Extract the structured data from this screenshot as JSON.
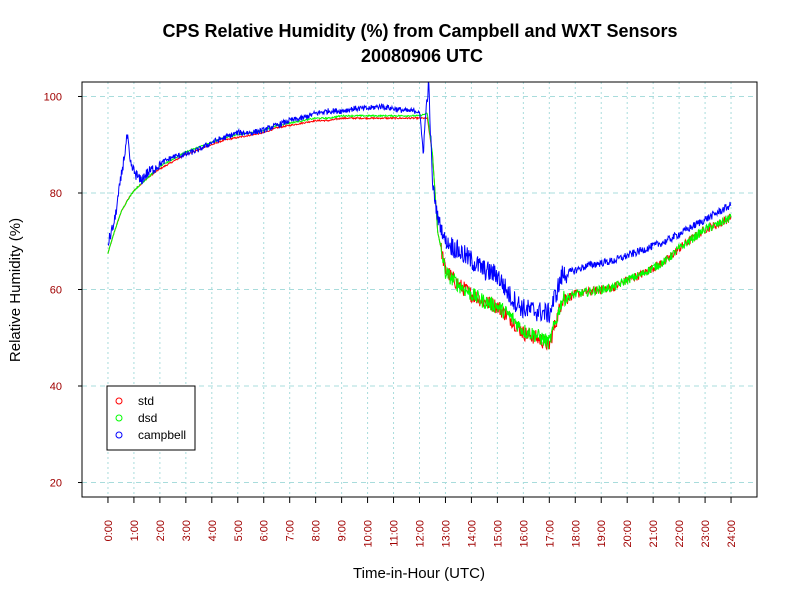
{
  "chart_data": {
    "type": "line",
    "title": "CPS Relative Humidity (%) from Campbell and WXT Sensors",
    "subtitle": "20080906  UTC",
    "xlabel": "Time-in-Hour (UTC)",
    "ylabel": "Relative Humidity (%)",
    "xlim": [
      -1,
      25
    ],
    "ylim": [
      17,
      103
    ],
    "x_ticks": [
      0,
      1,
      2,
      3,
      4,
      5,
      6,
      7,
      8,
      9,
      10,
      11,
      12,
      13,
      14,
      15,
      16,
      17,
      18,
      19,
      20,
      21,
      22,
      23,
      24
    ],
    "x_tick_labels": [
      "0:00",
      "1:00",
      "2:00",
      "3:00",
      "4:00",
      "5:00",
      "6:00",
      "7:00",
      "8:00",
      "9:00",
      "10:00",
      "11:00",
      "12:00",
      "13:00",
      "14:00",
      "15:00",
      "16:00",
      "17:00",
      "18:00",
      "19:00",
      "20:00",
      "21:00",
      "22:00",
      "23:00",
      "24:00"
    ],
    "y_ticks": [
      20,
      40,
      60,
      80,
      100
    ],
    "y_tick_labels": [
      "20",
      "40",
      "60",
      "80",
      "100"
    ],
    "grid": true,
    "legend_position": "bottom-left",
    "colors": {
      "std": "#ff0000",
      "dsd": "#00ff00",
      "campbell": "#0000ff",
      "tick_label": "#a00000",
      "grid": "#a8dcdc"
    },
    "series": [
      {
        "name": "std",
        "color": "#ff0000",
        "x": [
          0,
          0.25,
          0.5,
          0.75,
          1,
          1.5,
          2,
          2.5,
          3,
          3.5,
          4,
          4.5,
          5,
          5.5,
          6,
          6.5,
          7,
          7.5,
          8,
          8.5,
          9,
          9.5,
          10,
          10.5,
          11,
          11.5,
          12,
          12.3,
          12.5,
          12.7,
          13,
          13.5,
          14,
          14.5,
          15,
          15.5,
          16,
          16.5,
          17,
          17.5,
          18,
          18.5,
          19,
          19.5,
          20,
          20.5,
          21,
          21.5,
          22,
          22.5,
          23,
          23.5,
          24
        ],
        "values": [
          67.5,
          72,
          76,
          78.5,
          80.5,
          83,
          85,
          86.5,
          88,
          89,
          90,
          91,
          91.5,
          92,
          92.5,
          93.5,
          94,
          94.5,
          95,
          95,
          95.5,
          95.5,
          95.5,
          95.5,
          95.5,
          95.5,
          95.5,
          95.5,
          88,
          72,
          64,
          61,
          59,
          57.5,
          56.5,
          54,
          51,
          50,
          48.5,
          58,
          59,
          59.5,
          60,
          60.5,
          62,
          63,
          64.5,
          66,
          68.5,
          70.5,
          72.5,
          73.5,
          75
        ]
      },
      {
        "name": "dsd",
        "color": "#00ff00",
        "x": [
          0,
          0.25,
          0.5,
          0.75,
          1,
          1.5,
          2,
          2.5,
          3,
          3.5,
          4,
          4.5,
          5,
          5.5,
          6,
          6.5,
          7,
          7.5,
          8,
          8.5,
          9,
          9.5,
          10,
          10.5,
          11,
          11.5,
          12,
          12.3,
          12.5,
          12.7,
          13,
          13.5,
          14,
          14.5,
          15,
          15.5,
          16,
          16.5,
          17,
          17.5,
          18,
          18.5,
          19,
          19.5,
          20,
          20.5,
          21,
          21.5,
          22,
          22.5,
          23,
          23.5,
          24
        ],
        "values": [
          67.5,
          72,
          76,
          78.5,
          80.5,
          83,
          85.5,
          87,
          88.5,
          89.5,
          90.5,
          91.5,
          92,
          92.5,
          93,
          94,
          94.5,
          95,
          95.5,
          95.5,
          96,
          96,
          96,
          96,
          96,
          96,
          96,
          96.5,
          88,
          72,
          63.5,
          61,
          59,
          57.5,
          56.5,
          54.5,
          51.5,
          50.5,
          49,
          58,
          59,
          59.5,
          60,
          60.5,
          62,
          63,
          64.5,
          66,
          68.5,
          70.5,
          72.5,
          73.5,
          75
        ]
      },
      {
        "name": "campbell",
        "color": "#0000ff",
        "x": [
          0,
          0.25,
          0.5,
          0.75,
          0.85,
          1,
          1.25,
          1.5,
          1.75,
          2,
          2.5,
          3,
          3.5,
          4,
          4.5,
          5,
          5.5,
          6,
          6.5,
          7,
          7.5,
          8,
          8.5,
          9,
          9.5,
          10,
          10.5,
          11,
          11.5,
          12,
          12.05,
          12.15,
          12.25,
          12.35,
          12.5,
          12.7,
          13,
          13.5,
          14,
          14.5,
          15,
          15.5,
          16,
          16.5,
          17,
          17.5,
          18,
          18.5,
          19,
          19.5,
          20,
          20.5,
          21,
          21.5,
          22,
          22.5,
          23,
          23.5,
          24
        ],
        "values": [
          69.5,
          74,
          83,
          92,
          86,
          84.5,
          82.5,
          84,
          85,
          86,
          87.5,
          88,
          89,
          90.5,
          91.5,
          92.5,
          92.5,
          93,
          94,
          95,
          95.5,
          96.5,
          97,
          97,
          97.5,
          97.5,
          98,
          97.5,
          97,
          97,
          93,
          89,
          97,
          103,
          82,
          75,
          70,
          68,
          66,
          64,
          63,
          58.5,
          56,
          55.5,
          55,
          63,
          64,
          65,
          65.5,
          66,
          67,
          68,
          69,
          70,
          71.5,
          73,
          74.5,
          76,
          77.5
        ]
      }
    ]
  }
}
